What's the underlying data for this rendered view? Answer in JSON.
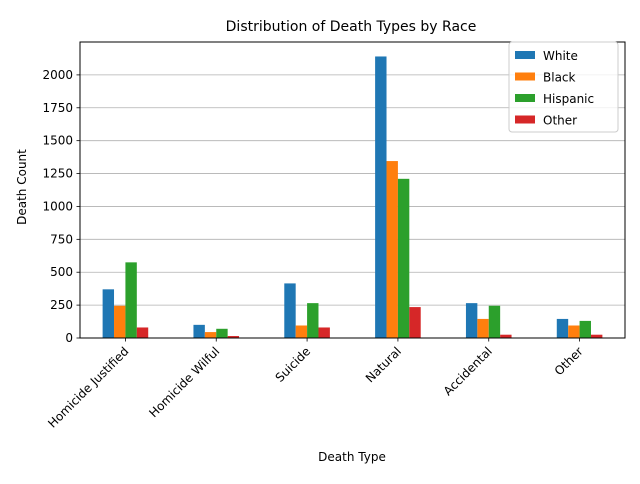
{
  "chart_data": {
    "type": "bar",
    "title": "Distribution of Death Types by Race",
    "xlabel": "Death Type",
    "ylabel": "Death Count",
    "categories": [
      "Homicide Justified",
      "Homicide Wilful",
      "Suicide",
      "Natural",
      "Accidental",
      "Other"
    ],
    "series": [
      {
        "name": "White",
        "color": "#1f77b4",
        "values": [
          370,
          100,
          415,
          2140,
          265,
          145
        ]
      },
      {
        "name": "Black",
        "color": "#ff7f0e",
        "values": [
          245,
          45,
          95,
          1345,
          145,
          95
        ]
      },
      {
        "name": "Hispanic",
        "color": "#2ca02c",
        "values": [
          575,
          70,
          265,
          1210,
          245,
          130
        ]
      },
      {
        "name": "Other",
        "color": "#d62728",
        "values": [
          80,
          15,
          80,
          235,
          25,
          25
        ]
      }
    ],
    "yticks": [
      "0",
      "250",
      "500",
      "750",
      "1000",
      "1250",
      "1500",
      "1750",
      "2000"
    ],
    "ylim": [
      0,
      2250
    ],
    "grid": "y",
    "legend_position": "top-right"
  }
}
